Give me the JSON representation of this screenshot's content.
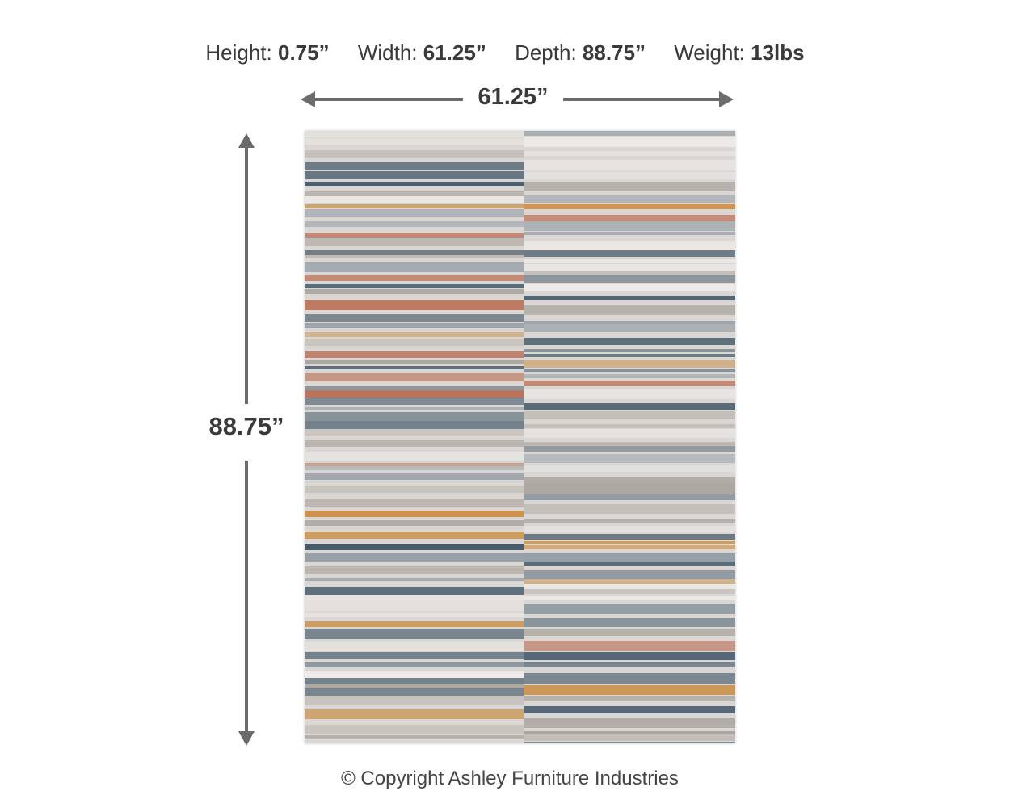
{
  "specs": [
    {
      "label": "Height:",
      "value": "0.75”"
    },
    {
      "label": "Width:",
      "value": "61.25”"
    },
    {
      "label": "Depth:",
      "value": "88.75”"
    },
    {
      "label": "Weight:",
      "value": "13lbs"
    }
  ],
  "width_dimension": "61.25”",
  "height_dimension": "88.75”",
  "copyright": "© Copyright Ashley Furniture Industries",
  "colors": {
    "text": "#3a3a3a",
    "arrow": "#6b6b6b",
    "rug_base": "#d9d6d3",
    "rug_blue": "#3e5566",
    "rug_rust": "#b8664a",
    "rug_orange": "#c98a3c"
  }
}
